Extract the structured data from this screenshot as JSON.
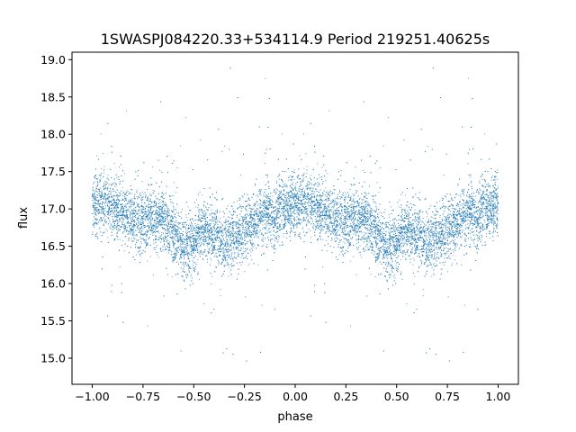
{
  "chart_data": {
    "type": "scatter",
    "title": "1SWASPJ084220.33+534114.9 Period 219251.40625s",
    "xlabel": "phase",
    "ylabel": "flux",
    "xlim": [
      -1.1,
      1.1
    ],
    "ylim": [
      14.65,
      19.1
    ],
    "x_ticks": [
      -1.0,
      -0.75,
      -0.5,
      -0.25,
      0.0,
      0.25,
      0.5,
      0.75,
      1.0
    ],
    "x_tick_labels": [
      "−1.00",
      "−0.75",
      "−0.50",
      "−0.25",
      "0.00",
      "0.25",
      "0.50",
      "0.75",
      "1.00"
    ],
    "y_ticks": [
      15.0,
      15.5,
      16.0,
      16.5,
      17.0,
      17.5,
      18.0,
      18.5,
      19.0
    ],
    "y_tick_labels": [
      "15.0",
      "15.5",
      "16.0",
      "16.5",
      "17.0",
      "17.5",
      "18.0",
      "18.5",
      "19.0"
    ],
    "grid": false,
    "legend": "none",
    "marker_color": "#1f77b4",
    "phase_range": [
      -1.0,
      1.0
    ],
    "mean_curve": {
      "phase": [
        0.0,
        0.05,
        0.1,
        0.15,
        0.2,
        0.25,
        0.3,
        0.35,
        0.4,
        0.45,
        0.5,
        0.55,
        0.6,
        0.65,
        0.7,
        0.75,
        0.8,
        0.85,
        0.9,
        0.95,
        1.0
      ],
      "flux": [
        17.05,
        17.08,
        17.02,
        16.95,
        16.9,
        16.82,
        16.88,
        16.85,
        16.7,
        16.45,
        16.58,
        16.72,
        16.65,
        16.55,
        16.6,
        16.75,
        16.82,
        16.95,
        16.92,
        17.0,
        17.05
      ]
    },
    "scatter_sigma": 0.2,
    "n_points_per_cycle": 6500
  }
}
